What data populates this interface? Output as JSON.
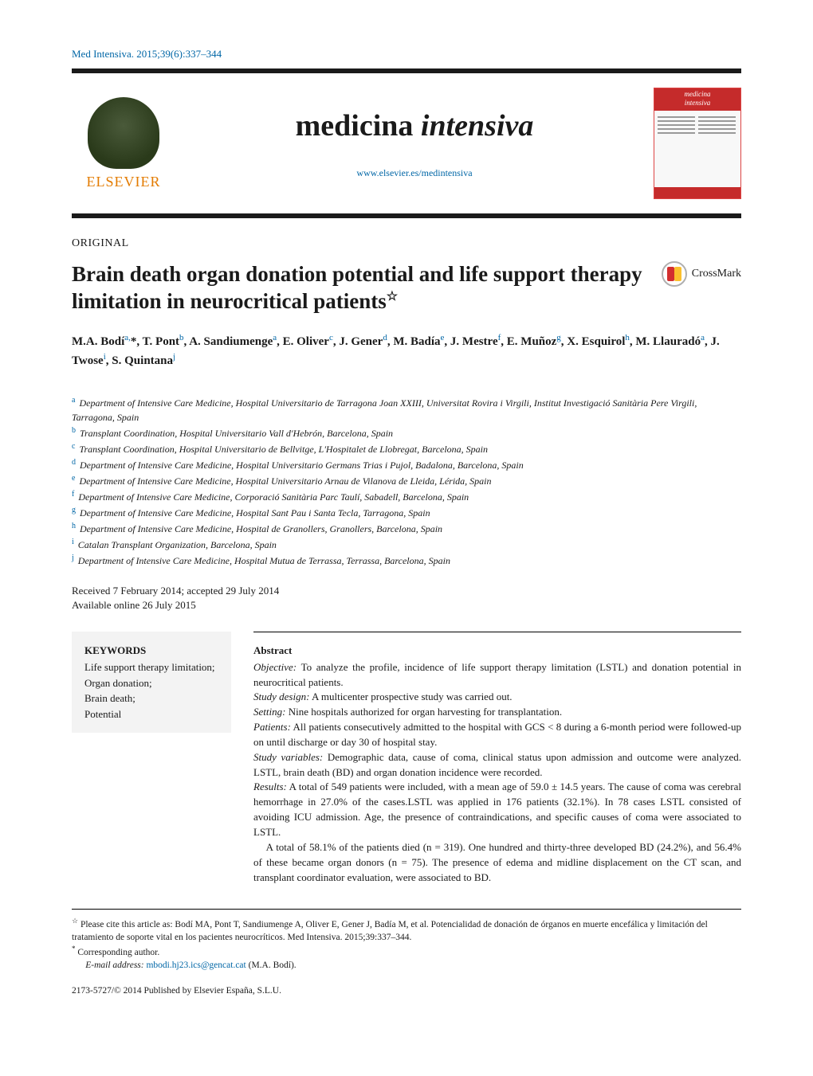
{
  "citation": "Med Intensiva. 2015;39(6):337–344",
  "publisher": {
    "name": "ELSEVIER"
  },
  "journal": {
    "title_plain": "medicina ",
    "title_italic": "intensiva",
    "url": "www.elsevier.es/medintensiva",
    "cover_label_top": "medicina",
    "cover_label_bottom": "intensiva"
  },
  "section_label": "ORIGINAL",
  "article": {
    "title": "Brain death organ donation potential and life support therapy limitation in neurocritical patients",
    "star": "☆"
  },
  "crossmark_label": "CrossMark",
  "authors_html": "M.A. Bodí<sup>a,</sup>*, T. Pont<sup>b</sup>, A. Sandiumenge<sup>a</sup>, E. Oliver<sup>c</sup>, J. Gener<sup>d</sup>, M. Badía<sup>e</sup>, J. Mestre<sup>f</sup>, E. Muñoz<sup>g</sup>, X. Esquirol<sup>h</sup>, M. Llauradó<sup>a</sup>, J. Twose<sup>i</sup>, S. Quintana<sup>j</sup>",
  "affiliations": [
    {
      "sup": "a",
      "text": "Department of Intensive Care Medicine, Hospital Universitario de Tarragona Joan XXIII, Universitat Rovira i Virgili, Institut Investigació Sanitària Pere Virgili, Tarragona, Spain"
    },
    {
      "sup": "b",
      "text": "Transplant Coordination, Hospital Universitario Vall d'Hebrón, Barcelona, Spain"
    },
    {
      "sup": "c",
      "text": "Transplant Coordination, Hospital Universitario de Bellvitge, L'Hospitalet de Llobregat, Barcelona, Spain"
    },
    {
      "sup": "d",
      "text": "Department of Intensive Care Medicine, Hospital Universitario Germans Trias i Pujol, Badalona, Barcelona, Spain"
    },
    {
      "sup": "e",
      "text": "Department of Intensive Care Medicine, Hospital Universitario Arnau de Vilanova de Lleida, Lérida, Spain"
    },
    {
      "sup": "f",
      "text": "Department of Intensive Care Medicine, Corporació Sanitària Parc Taulí, Sabadell, Barcelona, Spain"
    },
    {
      "sup": "g",
      "text": "Department of Intensive Care Medicine, Hospital Sant Pau i Santa Tecla, Tarragona, Spain"
    },
    {
      "sup": "h",
      "text": "Department of Intensive Care Medicine, Hospital de Granollers, Granollers, Barcelona, Spain"
    },
    {
      "sup": "i",
      "text": "Catalan Transplant Organization, Barcelona, Spain"
    },
    {
      "sup": "j",
      "text": "Department of Intensive Care Medicine, Hospital Mutua de Terrassa, Terrassa, Barcelona, Spain"
    }
  ],
  "dates": {
    "received_accepted": "Received 7 February 2014; accepted 29 July 2014",
    "online": "Available online 26 July 2015"
  },
  "keywords": {
    "heading": "KEYWORDS",
    "items": "Life support therapy limitation;\nOrgan donation;\nBrain death;\nPotential"
  },
  "abstract": {
    "heading": "Abstract",
    "objective_label": "Objective:",
    "objective": " To analyze the profile, incidence of life support therapy limitation (LSTL) and donation potential in neurocritical patients.",
    "study_design_label": "Study design:",
    "study_design": " A multicenter prospective study was carried out.",
    "setting_label": "Setting:",
    "setting": " Nine hospitals authorized for organ harvesting for transplantation.",
    "patients_label": "Patients:",
    "patients": " All patients consecutively admitted to the hospital with GCS < 8 during a 6-month period were followed-up on until discharge or day 30 of hospital stay.",
    "variables_label": "Study variables:",
    "variables": " Demographic data, cause of coma, clinical status upon admission and outcome were analyzed. LSTL, brain death (BD) and organ donation incidence were recorded.",
    "results_label": "Results:",
    "results_p1": " A total of 549 patients were included, with a mean age of 59.0 ± 14.5 years. The cause of coma was cerebral hemorrhage in 27.0% of the cases.LSTL was applied in 176 patients (32.1%). In 78 cases LSTL consisted of avoiding ICU admission. Age, the presence of contraindications, and specific causes of coma were associated to LSTL.",
    "results_p2": "A total of 58.1% of the patients died (n = 319). One hundred and thirty-three developed BD (24.2%), and 56.4% of these became organ donors (n = 75). The presence of edema and midline displacement on the CT scan, and transplant coordinator evaluation, were associated to BD."
  },
  "footnotes": {
    "cite_as_marker": "☆",
    "cite_as": " Please cite this article as: Bodí MA, Pont T, Sandiumenge A, Oliver E, Gener J, Badía M, et al. Potencialidad de donación de órganos en muerte encefálica y limitación del tratamiento de soporte vital en los pacientes neurocríticos. Med Intensiva. 2015;39:337–344.",
    "corresponding_marker": "*",
    "corresponding": " Corresponding author.",
    "email_label": "E-mail address: ",
    "email": "mbodi.hj23.ics@gencat.cat",
    "email_attrib": " (M.A. Bodí)."
  },
  "copyright": "2173-5727/© 2014 Published by Elsevier España, S.L.U.",
  "colors": {
    "link": "#0066a6",
    "publisher_orange": "#e37b00",
    "cover_red": "#c52b2b",
    "keywords_bg": "#f3f3f3",
    "text": "#1a1a1a"
  }
}
